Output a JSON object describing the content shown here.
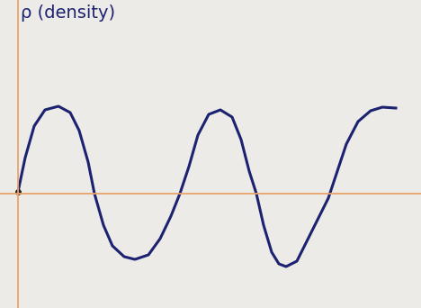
{
  "chart_data": {
    "type": "line",
    "y_label": "ρ (density)",
    "x": [
      0,
      8,
      18,
      30,
      45,
      58,
      68,
      78,
      85,
      95,
      105,
      118,
      130,
      145,
      158,
      170,
      180,
      190,
      200,
      212,
      225,
      238,
      248,
      257,
      265,
      273,
      282,
      290,
      298,
      310,
      320,
      335,
      345,
      355,
      365,
      378,
      392,
      405,
      420
    ],
    "values": [
      2,
      40,
      75,
      93,
      97,
      90,
      70,
      35,
      0,
      -35,
      -58,
      -70,
      -73,
      -68,
      -50,
      -25,
      0,
      30,
      65,
      88,
      93,
      85,
      60,
      25,
      0,
      -35,
      -65,
      -78,
      -81,
      -75,
      -55,
      -25,
      -5,
      25,
      55,
      80,
      92,
      96,
      95
    ],
    "color": "#1c2270",
    "xlim": [
      -20,
      448
    ],
    "ylim": [
      -127,
      215
    ],
    "xticks": [],
    "yticks": [],
    "tick_labels": false
  }
}
